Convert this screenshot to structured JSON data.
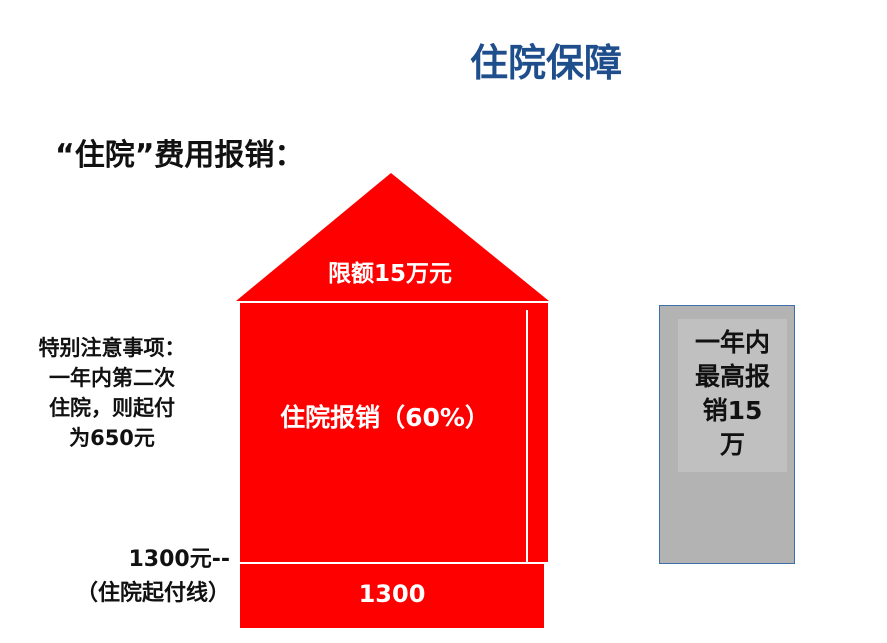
{
  "title": "住院保障",
  "subtitle": "“住院”费用报销：",
  "house": {
    "roof_label": "限额15万元",
    "main_label": "住院报销（60%）",
    "base_label": "1300"
  },
  "note": [
    "特别注意事项：",
    "一年内第二次",
    "住院，则起付",
    "为650元"
  ],
  "threshold": [
    "1300元--",
    "（住院起付线）"
  ],
  "side_box": [
    "一年内",
    "最高报",
    "销15",
    "万"
  ],
  "colors": {
    "title": "#1f4e8c",
    "house": "#fe0000",
    "side_box": "#b3b3b3"
  }
}
